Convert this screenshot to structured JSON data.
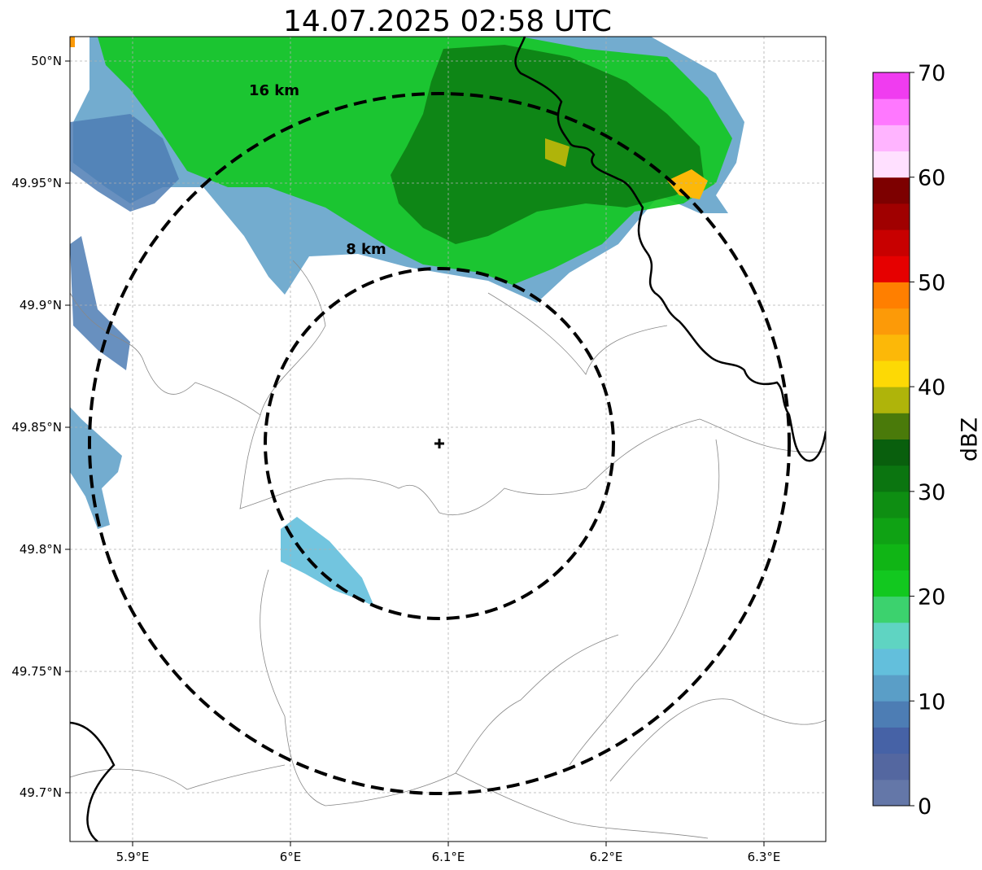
{
  "title": "14.07.2025 02:58 UTC",
  "map": {
    "lon_range": [
      5.86,
      6.34
    ],
    "lat_range": [
      49.68,
      50.01
    ],
    "x_ticks": [
      {
        "value": 5.9,
        "label": "5.9°E"
      },
      {
        "value": 6.0,
        "label": "6°E"
      },
      {
        "value": 6.1,
        "label": "6.1°E"
      },
      {
        "value": 6.2,
        "label": "6.2°E"
      },
      {
        "value": 6.3,
        "label": "6.3°E"
      }
    ],
    "y_ticks": [
      {
        "value": 50.0,
        "label": "50°N"
      },
      {
        "value": 49.95,
        "label": "49.95°N"
      },
      {
        "value": 49.9,
        "label": "49.9°N"
      },
      {
        "value": 49.85,
        "label": "49.85°N"
      },
      {
        "value": 49.8,
        "label": "49.8°N"
      },
      {
        "value": 49.75,
        "label": "49.75°N"
      },
      {
        "value": 49.7,
        "label": "49.7°N"
      }
    ],
    "grid": true,
    "radar_site": {
      "lon": 6.095,
      "lat": 49.843
    },
    "range_rings": [
      {
        "radius_km": 8,
        "label": "8 km"
      },
      {
        "radius_km": 16,
        "label": "16 km"
      }
    ]
  },
  "colorbar": {
    "label": "dBZ",
    "min": 0,
    "max": 70,
    "ticks": [
      0,
      10,
      20,
      30,
      40,
      50,
      60,
      70
    ],
    "colors": [
      "#6477a8",
      "#5467a0",
      "#4662a6",
      "#4d7db4",
      "#5a9ec7",
      "#63bfdc",
      "#5fd4c2",
      "#3cd26e",
      "#12c81f",
      "#10b515",
      "#0fa214",
      "#0e8e12",
      "#0b7510",
      "#095f0d",
      "#4a7a0a",
      "#afb40a",
      "#fdd905",
      "#fcb808",
      "#fc9a08",
      "#ff7f00",
      "#e60000",
      "#c80000",
      "#a00000",
      "#7d0000",
      "#ffe0ff",
      "#ffb4ff",
      "#ff78ff",
      "#f03cf0"
    ]
  }
}
